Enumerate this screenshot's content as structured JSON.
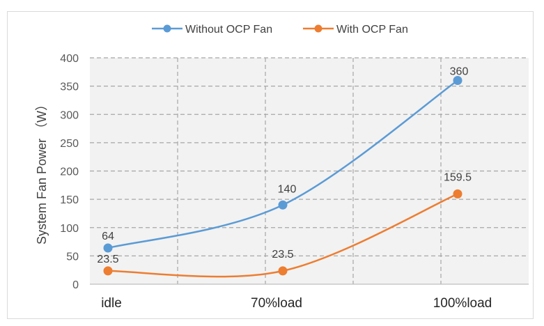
{
  "chart_data": {
    "type": "line",
    "categories": [
      "idle",
      "70%load",
      "100%load"
    ],
    "ylabel": "System Fan Power （W）",
    "ylim": [
      0,
      400
    ],
    "yticks": [
      0,
      50,
      100,
      150,
      200,
      250,
      300,
      350,
      400
    ],
    "grid": true,
    "legend_position": "top",
    "series": [
      {
        "name": "Without OCP Fan",
        "values": [
          64,
          140,
          360
        ],
        "labels": [
          "64",
          "140",
          "360"
        ],
        "color": "#5b9bd5"
      },
      {
        "name": "With OCP Fan",
        "values": [
          23.5,
          23.5,
          159.5
        ],
        "labels": [
          "23.5",
          "23.5",
          "159.5"
        ],
        "color": "#ed7d31"
      }
    ]
  }
}
